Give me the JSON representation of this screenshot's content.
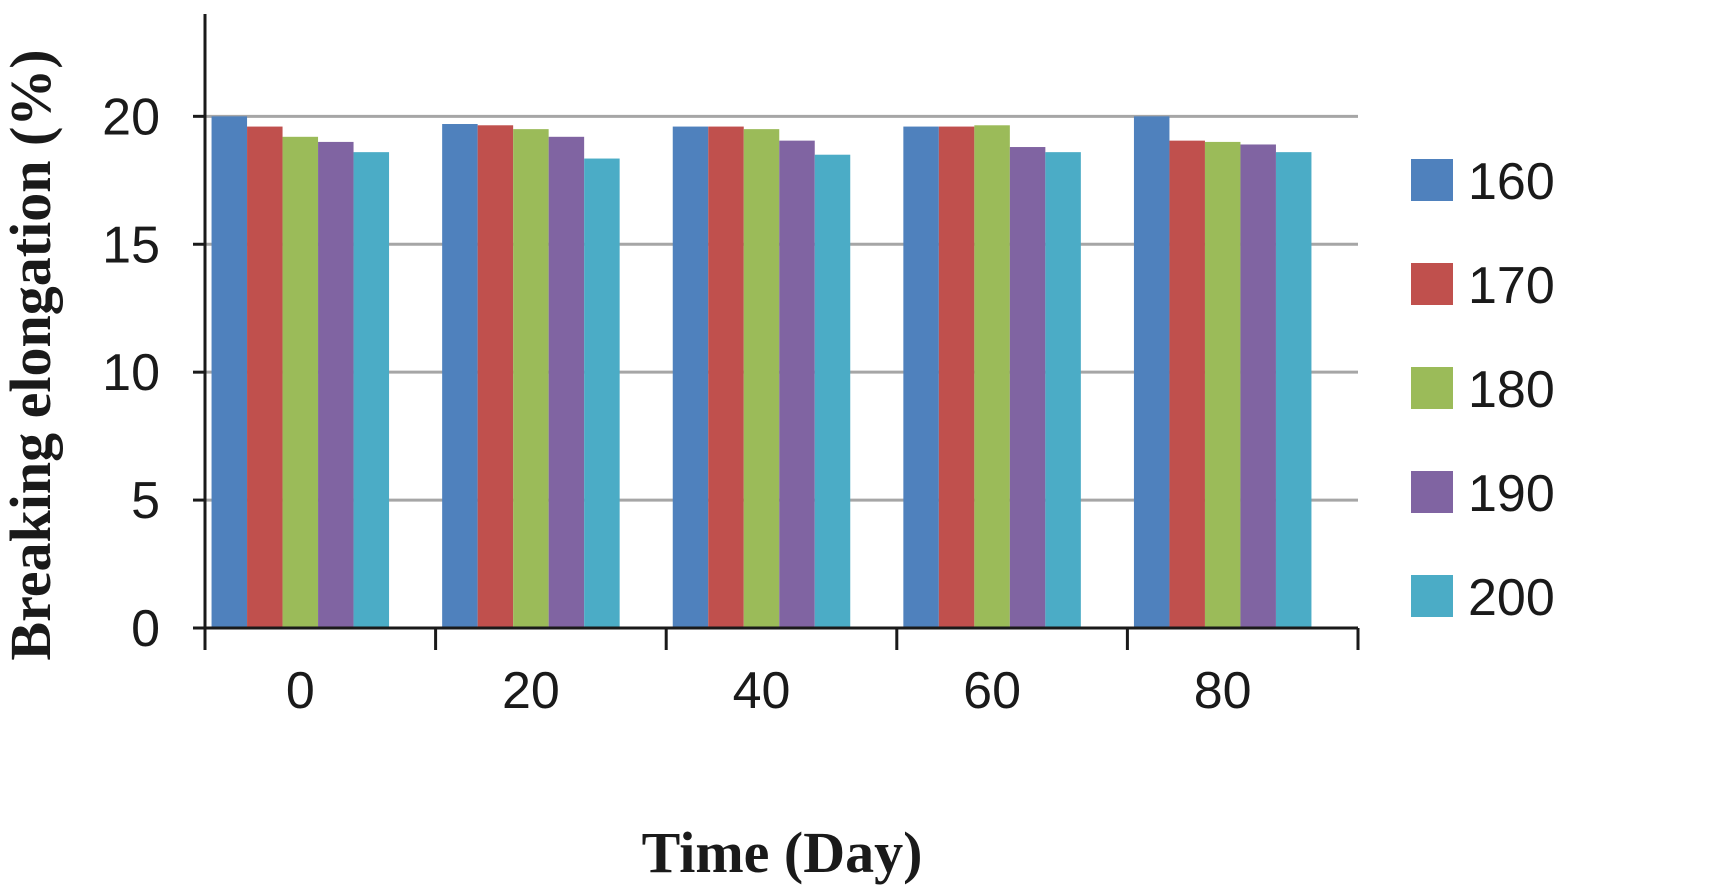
{
  "chart_data": {
    "type": "bar",
    "title": "",
    "xlabel": "Time (Day)",
    "ylabel": "Breaking elongation (%)",
    "categories": [
      "0",
      "20",
      "40",
      "60",
      "80"
    ],
    "yticks": [
      "0",
      "5",
      "10",
      "15",
      "20"
    ],
    "ylim": [
      0,
      24
    ],
    "grid": true,
    "legend_position": "right",
    "series": [
      {
        "name": "160",
        "color": "#4f81bd",
        "values": [
          20.0,
          19.7,
          19.6,
          19.6,
          20.0
        ]
      },
      {
        "name": "170",
        "color": "#c0504d",
        "values": [
          19.6,
          19.65,
          19.6,
          19.6,
          19.05
        ]
      },
      {
        "name": "180",
        "color": "#9bbb59",
        "values": [
          19.2,
          19.5,
          19.5,
          19.65,
          19.0
        ]
      },
      {
        "name": "190",
        "color": "#8064a2",
        "values": [
          19.0,
          19.2,
          19.05,
          18.8,
          18.9
        ]
      },
      {
        "name": "200",
        "color": "#4bacc6",
        "values": [
          18.6,
          18.35,
          18.5,
          18.6,
          18.6
        ]
      }
    ]
  }
}
